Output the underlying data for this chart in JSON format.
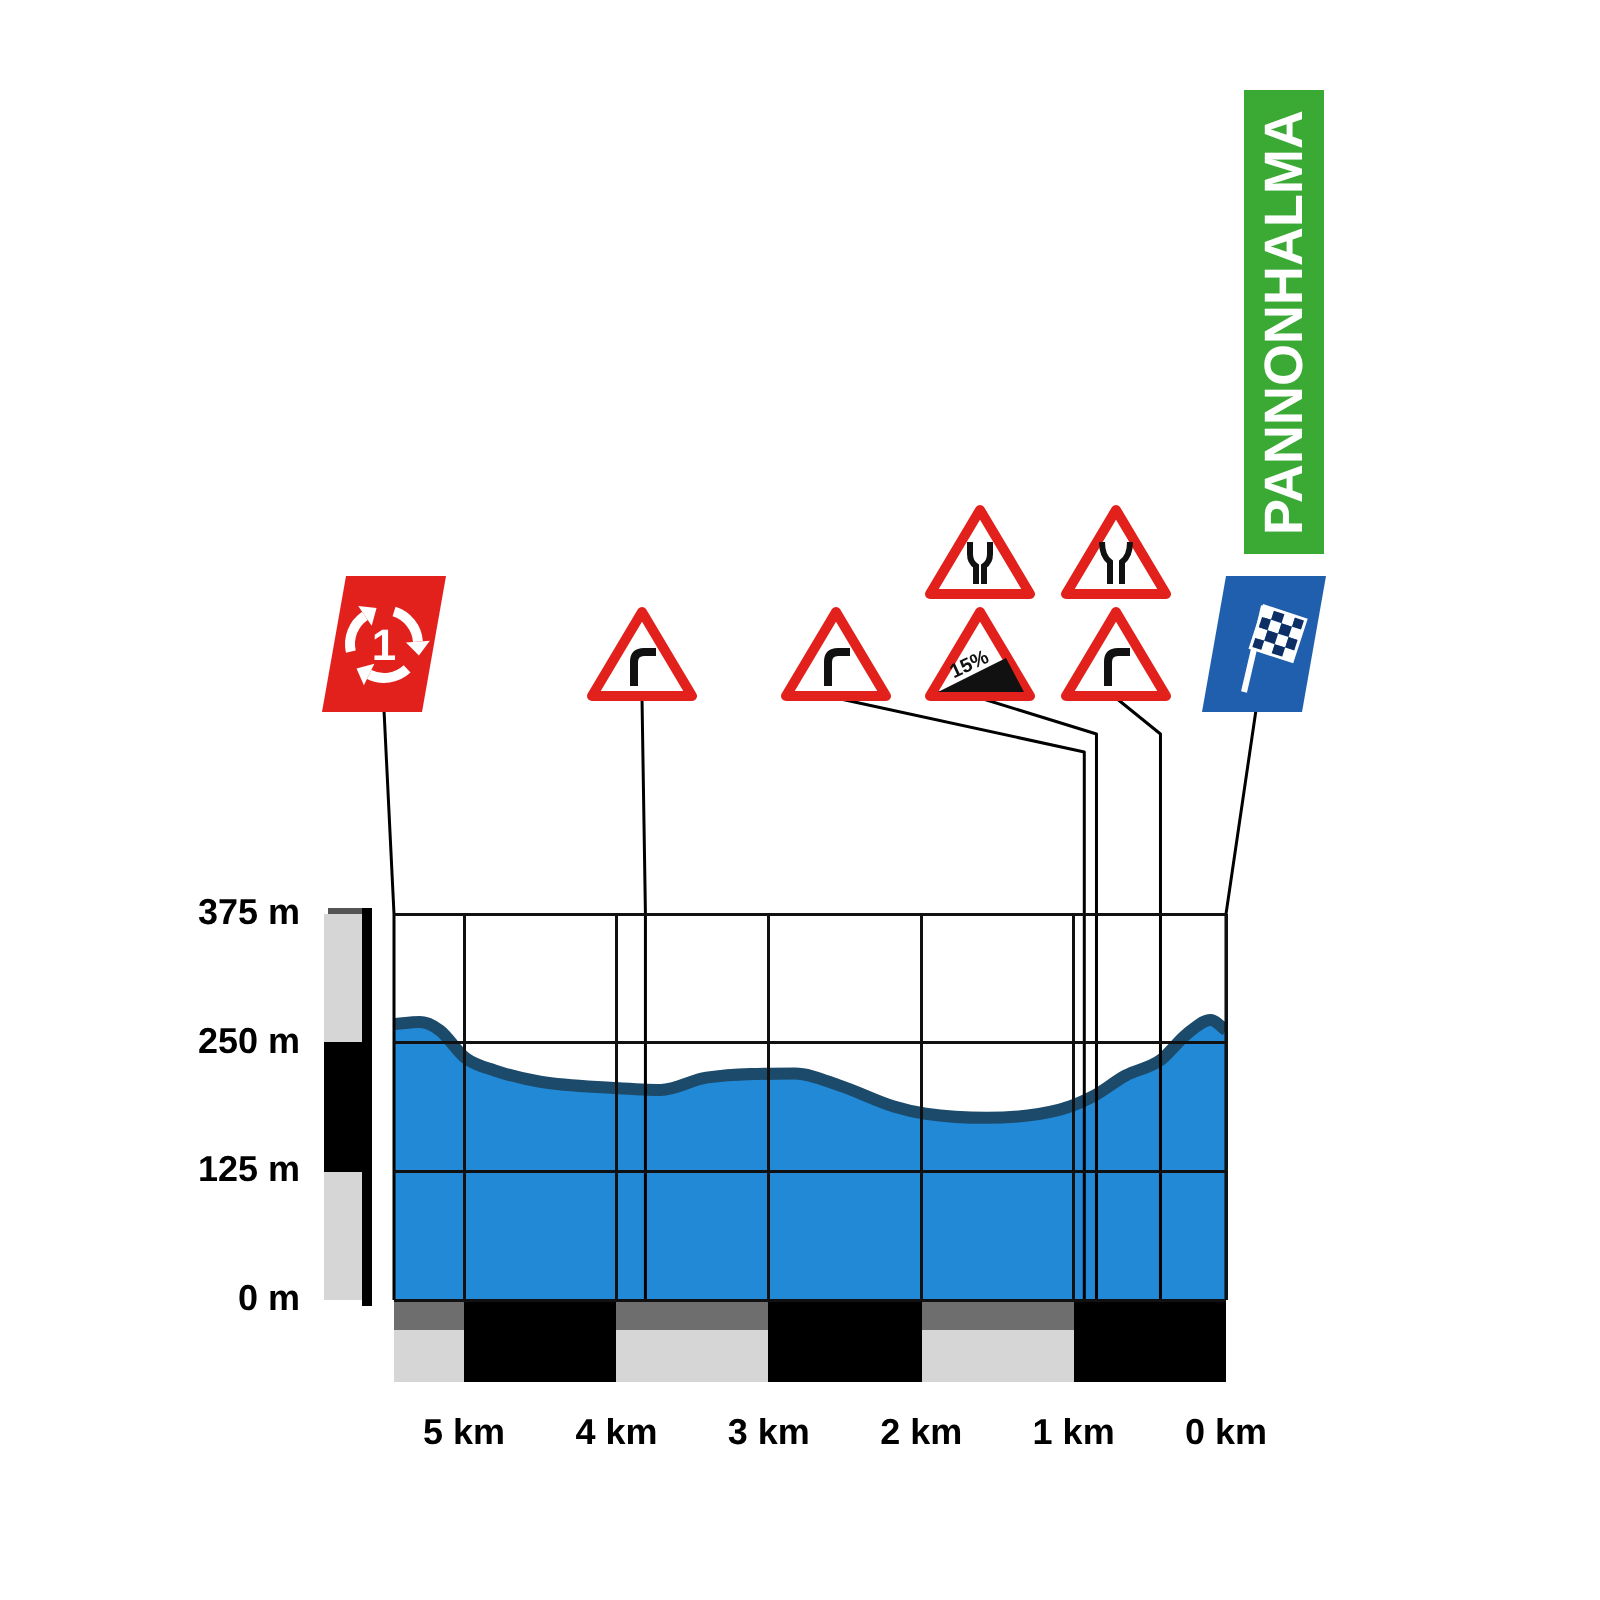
{
  "chart_data": {
    "type": "area",
    "x": [
      5.46,
      5.29,
      5.16,
      4.99,
      4.8,
      4.5,
      4.02,
      3.71,
      3.41,
      2.83,
      2.53,
      2.18,
      1.97,
      1.57,
      1.09,
      0.87,
      0.66,
      0.43,
      0.26,
      0.1,
      0
    ],
    "series": [
      {
        "color": "#2189d6",
        "values": [
          268,
          270,
          262,
          235,
          223,
          212,
          206,
          204,
          216,
          220,
          208,
          188,
          181,
          177,
          185,
          198,
          218,
          233,
          258,
          272,
          262
        ]
      }
    ],
    "xlim": [
      5.46,
      0
    ],
    "xticks": [
      {
        "value": 5,
        "label": "5 km"
      },
      {
        "value": 4,
        "label": "4 km"
      },
      {
        "value": 3,
        "label": "3 km"
      },
      {
        "value": 2,
        "label": "2 km"
      },
      {
        "value": 1,
        "label": "1 km"
      },
      {
        "value": 0,
        "label": "0 km"
      }
    ],
    "ylim": [
      0,
      375
    ],
    "yticks": [
      {
        "value": 0,
        "label": "0 m"
      },
      {
        "value": 125,
        "label": "125 m"
      },
      {
        "value": 250,
        "label": "250 m"
      },
      {
        "value": 375,
        "label": "375 m"
      }
    ],
    "grid": true,
    "ref_lines": [
      {
        "axis": "x",
        "value": 5.46,
        "color": "#000000"
      },
      {
        "axis": "x",
        "value": 3.81,
        "color": "#000000"
      },
      {
        "axis": "x",
        "value": 0.93,
        "color": "#000000"
      },
      {
        "axis": "x",
        "value": 0.85,
        "color": "#000000"
      },
      {
        "axis": "x",
        "value": 0.43,
        "color": "#000000"
      },
      {
        "axis": "x",
        "value": 0,
        "color": "#000000"
      }
    ],
    "annotations": [
      "PANNONHALMA",
      "15%",
      "1"
    ]
  }
}
